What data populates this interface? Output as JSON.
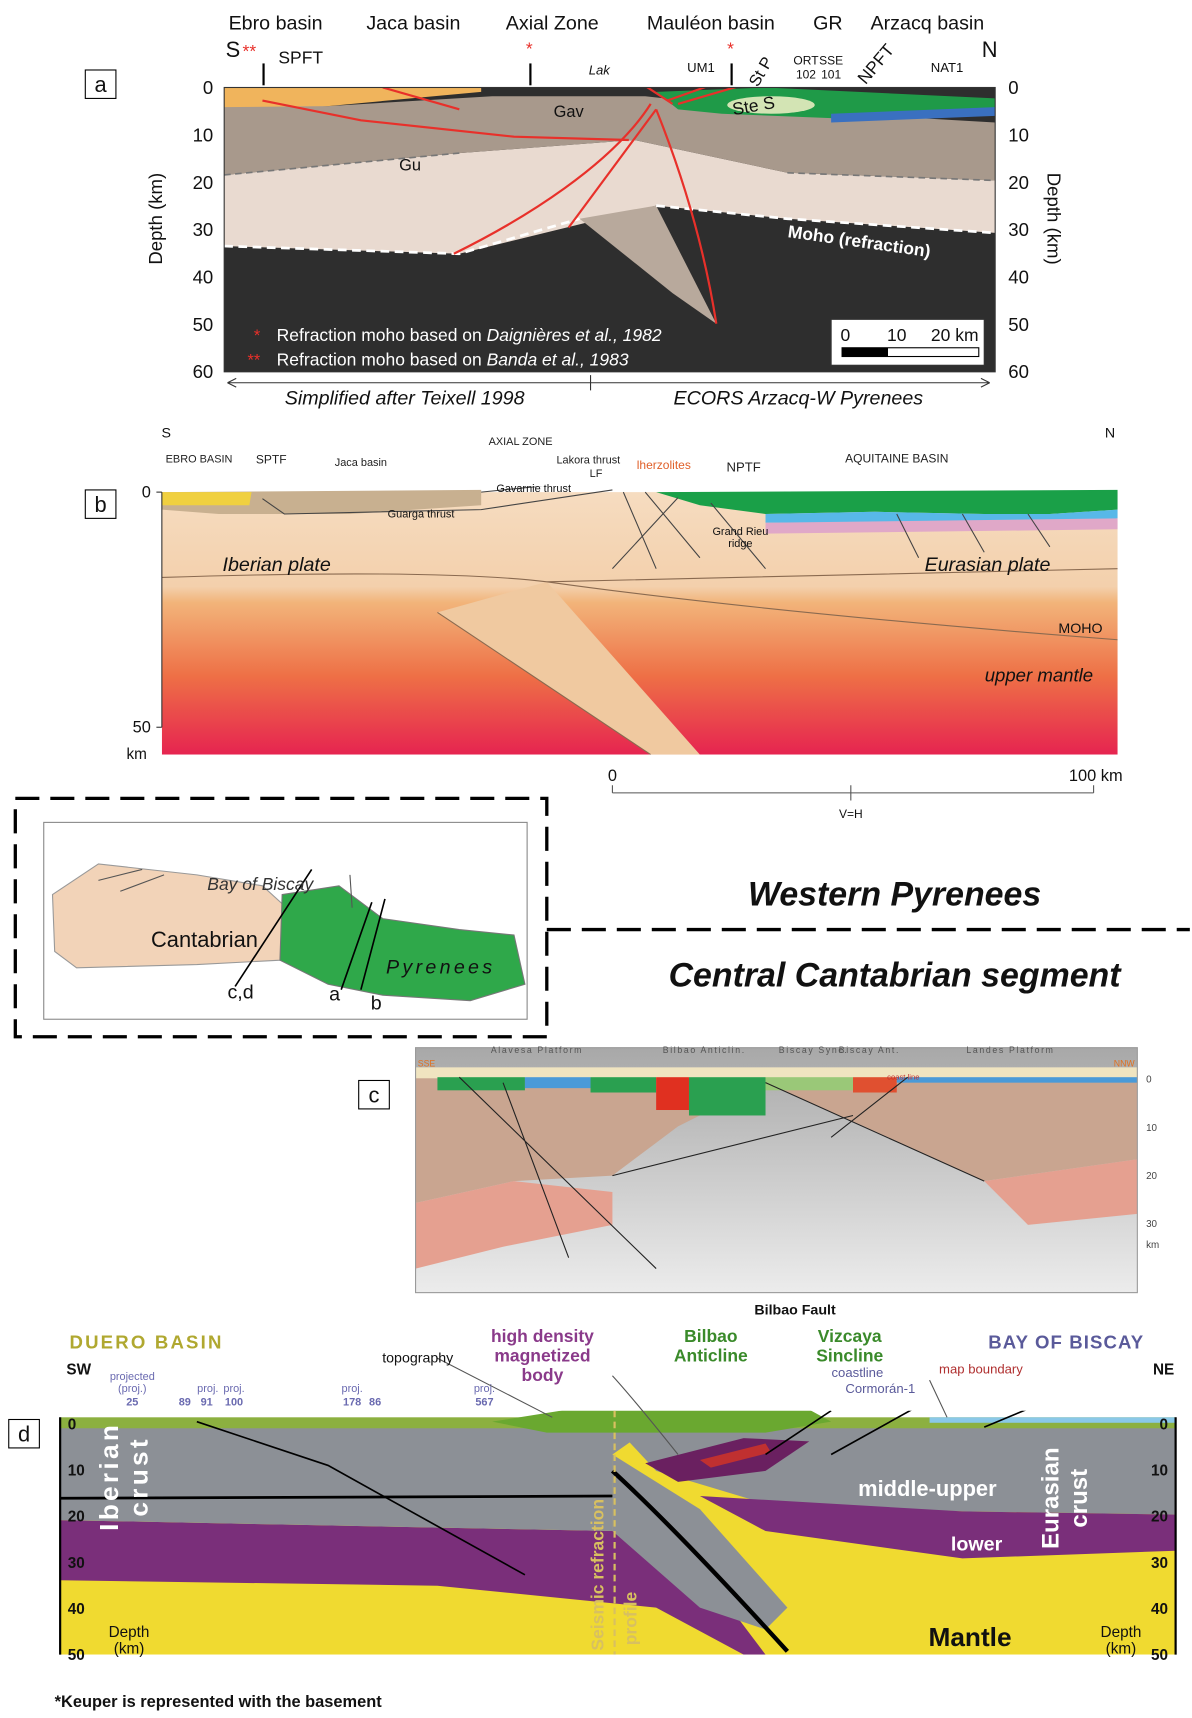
{
  "panel_a": {
    "label": "a",
    "regions": [
      "Ebro basin",
      "Jaca basin",
      "Axial Zone",
      "Mauléon basin",
      "GR",
      "Arzacq basin"
    ],
    "south": "S",
    "north": "N",
    "markers": [
      "**",
      "*",
      "*"
    ],
    "structures": [
      "SPFT",
      "Lak",
      "UM1",
      "St P",
      "ORT",
      "102",
      "SSE",
      "101",
      "NPFT",
      "NAT1",
      "Ste S",
      "Gu",
      "Gav",
      "Moho (refraction)"
    ],
    "depth_axis": "Depth (km)",
    "depth_ticks": [
      "0",
      "10",
      "20",
      "30",
      "40",
      "50",
      "60"
    ],
    "legend": [
      {
        "symbol": "*",
        "text": "Refraction moho based on ",
        "citation": "Daignières et al., 1982"
      },
      {
        "symbol": "**",
        "text": "Refraction moho based on ",
        "citation": "Banda et al., 1983"
      }
    ],
    "scale_bar": [
      "0",
      "10",
      "20 km"
    ],
    "sources": [
      "Simplified after Teixell 1998",
      "ECORS Arzacq-W Pyrenees"
    ]
  },
  "panel_b": {
    "label": "b",
    "south": "S",
    "north": "N",
    "regions": [
      "EBRO BASIN",
      "SPTF",
      "Jaca basin",
      "AXIAL ZONE",
      "Lakora thrust",
      "LF",
      "lherzolites",
      "NPTF",
      "AQUITAINE BASIN"
    ],
    "structures": [
      "Gavarnie thrust",
      "Guarga thrust",
      "Grand Rieu",
      "ridge"
    ],
    "units": [
      "Iberian plate",
      "Eurasian plate",
      "MOHO",
      "upper mantle"
    ],
    "depth_ticks": [
      "0",
      "50"
    ],
    "depth_unit": "km",
    "scale_bar": [
      "0",
      "100 km"
    ],
    "scale_note": "V=H"
  },
  "map": {
    "sea": "Bay of Biscay",
    "regions": [
      "Cantabrian",
      "Pyrenees"
    ],
    "profiles": [
      "c,d",
      "a",
      "b"
    ]
  },
  "headings": [
    "Western Pyrenees",
    "Central Cantabrian segment"
  ],
  "panel_c": {
    "label": "c",
    "ends": [
      "SSE",
      "NNW"
    ],
    "structures": [
      "Alavesa Platform",
      "Bilbao Anticlin.",
      "Biscay Sync.",
      "Biscay Ant.",
      "Landes Platform"
    ],
    "coast": "coast line",
    "depth_ticks": [
      "0",
      "10",
      "20",
      "30"
    ],
    "depth_unit": "km"
  },
  "panel_d": {
    "label": "d",
    "regions": [
      "DUERO BASIN",
      "BAY OF BISCAY"
    ],
    "ends": [
      "SW",
      "NE"
    ],
    "wells": [
      {
        "tag": [
          "projected",
          "(proj.)"
        ],
        "ids": [
          "25"
        ]
      },
      {
        "tag": [
          "proj."
        ],
        "ids": [
          "89",
          "91"
        ]
      },
      {
        "tag": [
          "proj."
        ],
        "ids": [
          "100"
        ]
      },
      {
        "tag": [
          "proj."
        ],
        "ids": [
          "178",
          "86"
        ]
      },
      {
        "tag": [
          "proj."
        ],
        "ids": [
          "567"
        ]
      }
    ],
    "annotations": {
      "topography": "topography",
      "body": [
        "high density",
        "magnetized",
        "body"
      ],
      "anticline": [
        "Bilbao",
        "Anticline"
      ],
      "fault": "Bilbao Fault",
      "syncline": [
        "Vizcaya",
        "Sincline"
      ],
      "coastline": "coastline",
      "well": "Cormorán-1",
      "map_boundary": "map boundary"
    },
    "units": {
      "iberian": [
        "Iberian",
        "crust"
      ],
      "middle_upper": "middle-upper",
      "lower": "lower",
      "eurasian": [
        "Eurasian",
        "crust"
      ],
      "mantle": "Mantle",
      "profile": [
        "Seismic refraction",
        "profile"
      ]
    },
    "depth_axis": [
      "Depth",
      "(km)"
    ],
    "depth_ticks": [
      "0",
      "10",
      "20",
      "30",
      "40",
      "50"
    ],
    "footnote": "*Keuper is represented with the basement"
  }
}
